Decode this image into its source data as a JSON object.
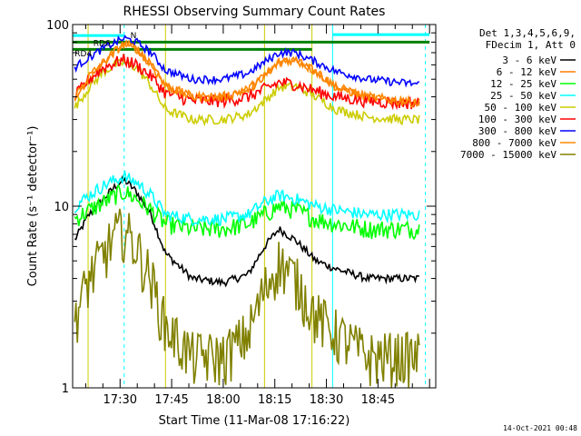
{
  "chart_data": {
    "type": "line",
    "title": "RHESSI Observing Summary Count Rates",
    "xlabel": "Start Time (11-Mar-08 17:16:22)",
    "ylabel": "Count Rate (s⁻¹ detector⁻¹)",
    "yscale": "log",
    "ylim": [
      1,
      100
    ],
    "xlim_minutes": [
      17.27,
      19.03
    ],
    "x_tick_labels": [
      "17:30",
      "17:45",
      "18:00",
      "18:15",
      "18:30",
      "18:45"
    ],
    "x_tick_values_hours": [
      17.5,
      17.75,
      18.0,
      18.25,
      18.5,
      18.75
    ],
    "y_tick_labels": [
      "1",
      "10",
      "100"
    ],
    "y_tick_values": [
      1,
      10,
      100
    ],
    "legend_header": [
      "Det 1,3,4,5,6,9,",
      "FDecim 1, Att 0"
    ],
    "legend_position": "right",
    "footer_date": "14-Oct-2021 00:48",
    "flag_labels": [
      "RD6",
      "RD4",
      "N"
    ],
    "series": [
      {
        "name": "3 - 6 keV",
        "color": "#000000",
        "x": [
          17.28,
          17.35,
          17.42,
          17.48,
          17.52,
          17.58,
          17.65,
          17.72,
          17.85,
          18.0,
          18.12,
          18.2,
          18.27,
          18.35,
          18.45,
          18.55,
          18.7,
          18.85,
          18.95
        ],
        "y": [
          6.5,
          9,
          11,
          13,
          14,
          12,
          9,
          5.5,
          4,
          3.8,
          4.2,
          6,
          7.5,
          6.5,
          5,
          4.5,
          4,
          4,
          4
        ]
      },
      {
        "name": "6 - 12 keV",
        "color": "#ff7f00",
        "x": [
          17.28,
          17.35,
          17.42,
          17.48,
          17.52,
          17.58,
          17.65,
          17.72,
          17.85,
          18.0,
          18.12,
          18.2,
          18.27,
          18.35,
          18.45,
          18.55,
          18.7,
          18.85,
          18.95
        ],
        "y": [
          40,
          50,
          62,
          72,
          78,
          74,
          60,
          46,
          40,
          40,
          44,
          52,
          62,
          64,
          55,
          45,
          40,
          38,
          37
        ]
      },
      {
        "name": "12 - 25 keV",
        "color": "#00ff00",
        "x": [
          17.28,
          17.35,
          17.42,
          17.48,
          17.52,
          17.58,
          17.65,
          17.72,
          17.85,
          18.0,
          18.12,
          18.2,
          18.27,
          18.35,
          18.45,
          18.55,
          18.7,
          18.85,
          18.95
        ],
        "y": [
          8.5,
          9.5,
          10.5,
          11.5,
          12,
          11,
          9.5,
          8,
          7.5,
          7.5,
          8,
          9,
          10,
          9.5,
          8.5,
          8,
          7.5,
          7.5,
          7.5
        ]
      },
      {
        "name": "25 - 50 keV",
        "color": "#00ffff",
        "x": [
          17.28,
          17.35,
          17.42,
          17.48,
          17.52,
          17.58,
          17.65,
          17.72,
          17.85,
          18.0,
          18.12,
          18.2,
          18.27,
          18.35,
          18.45,
          18.55,
          18.7,
          18.85,
          18.95
        ],
        "y": [
          10,
          11.5,
          13,
          14,
          14.5,
          13.5,
          11.5,
          9,
          8.5,
          8.5,
          9,
          10.5,
          11.5,
          11,
          10,
          9.5,
          9,
          9,
          9
        ]
      },
      {
        "name": "50 - 100 keV",
        "color": "#cccc00",
        "x": [
          17.28,
          17.35,
          17.42,
          17.48,
          17.52,
          17.58,
          17.65,
          17.72,
          17.85,
          18.0,
          18.12,
          18.2,
          18.27,
          18.35,
          18.45,
          18.55,
          18.7,
          18.85,
          18.95
        ],
        "y": [
          35,
          45,
          55,
          60,
          62,
          58,
          46,
          34,
          30,
          30,
          32,
          38,
          45,
          46,
          40,
          34,
          31,
          30,
          30
        ]
      },
      {
        "name": "100 - 300 keV",
        "color": "#ff0000",
        "x": [
          17.28,
          17.35,
          17.42,
          17.48,
          17.52,
          17.58,
          17.65,
          17.72,
          17.85,
          18.0,
          18.12,
          18.2,
          18.27,
          18.35,
          18.45,
          18.55,
          18.7,
          18.85,
          18.95
        ],
        "y": [
          40,
          50,
          58,
          62,
          64,
          60,
          52,
          42,
          38,
          38,
          40,
          44,
          48,
          47,
          43,
          40,
          38,
          37,
          37
        ]
      },
      {
        "name": "300 - 800 keV",
        "color": "#0000ff",
        "x": [
          17.28,
          17.35,
          17.42,
          17.48,
          17.52,
          17.58,
          17.65,
          17.72,
          17.85,
          18.0,
          18.12,
          18.2,
          18.27,
          18.35,
          18.45,
          18.55,
          18.7,
          18.85,
          18.95
        ],
        "y": [
          58,
          66,
          74,
          80,
          84,
          80,
          70,
          56,
          50,
          50,
          54,
          62,
          70,
          70,
          62,
          55,
          50,
          48,
          47
        ]
      },
      {
        "name": "800 - 7000 keV",
        "color": "#ff8800",
        "x": [
          17.28,
          17.35,
          17.42,
          17.48,
          17.52,
          17.58,
          17.65,
          17.72,
          17.85,
          18.0,
          18.12,
          18.2,
          18.27,
          18.35,
          18.45,
          18.55,
          18.7,
          18.85,
          18.95
        ],
        "y": [
          40,
          52,
          62,
          72,
          78,
          74,
          60,
          46,
          40,
          40,
          44,
          52,
          62,
          64,
          55,
          45,
          40,
          38,
          37
        ]
      },
      {
        "name": "7000 - 15000 keV",
        "color": "#808000",
        "x": [
          17.28,
          17.35,
          17.42,
          17.48,
          17.52,
          17.58,
          17.65,
          17.72,
          17.85,
          18.0,
          18.12,
          18.2,
          18.27,
          18.35,
          18.45,
          18.55,
          18.7,
          18.85,
          18.95
        ],
        "y": [
          2.5,
          4,
          5.5,
          7,
          7.5,
          6,
          4,
          2.2,
          1.5,
          1.5,
          2,
          3.5,
          5,
          4,
          2.5,
          2,
          1.5,
          1.5,
          1.5
        ]
      }
    ]
  }
}
